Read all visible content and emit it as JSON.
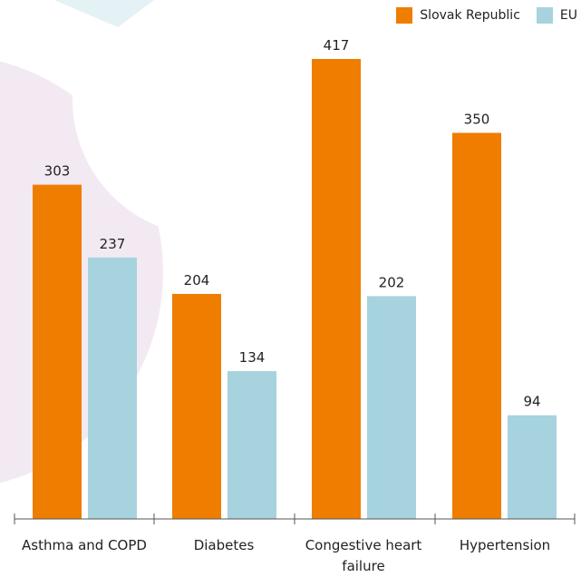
{
  "chart_data": {
    "type": "bar",
    "categories": [
      "Asthma and COPD",
      "Diabetes",
      "Congestive heart failure",
      "Hypertension"
    ],
    "series": [
      {
        "name": "Slovak Republic",
        "color": "#ef7d00",
        "values": [
          303,
          204,
          417,
          350
        ]
      },
      {
        "name": "EU",
        "color": "#a6d3dd",
        "values": [
          237,
          134,
          202,
          94
        ]
      }
    ],
    "ylim": [
      0,
      417
    ],
    "grid": false,
    "legend_position": "top-right"
  }
}
